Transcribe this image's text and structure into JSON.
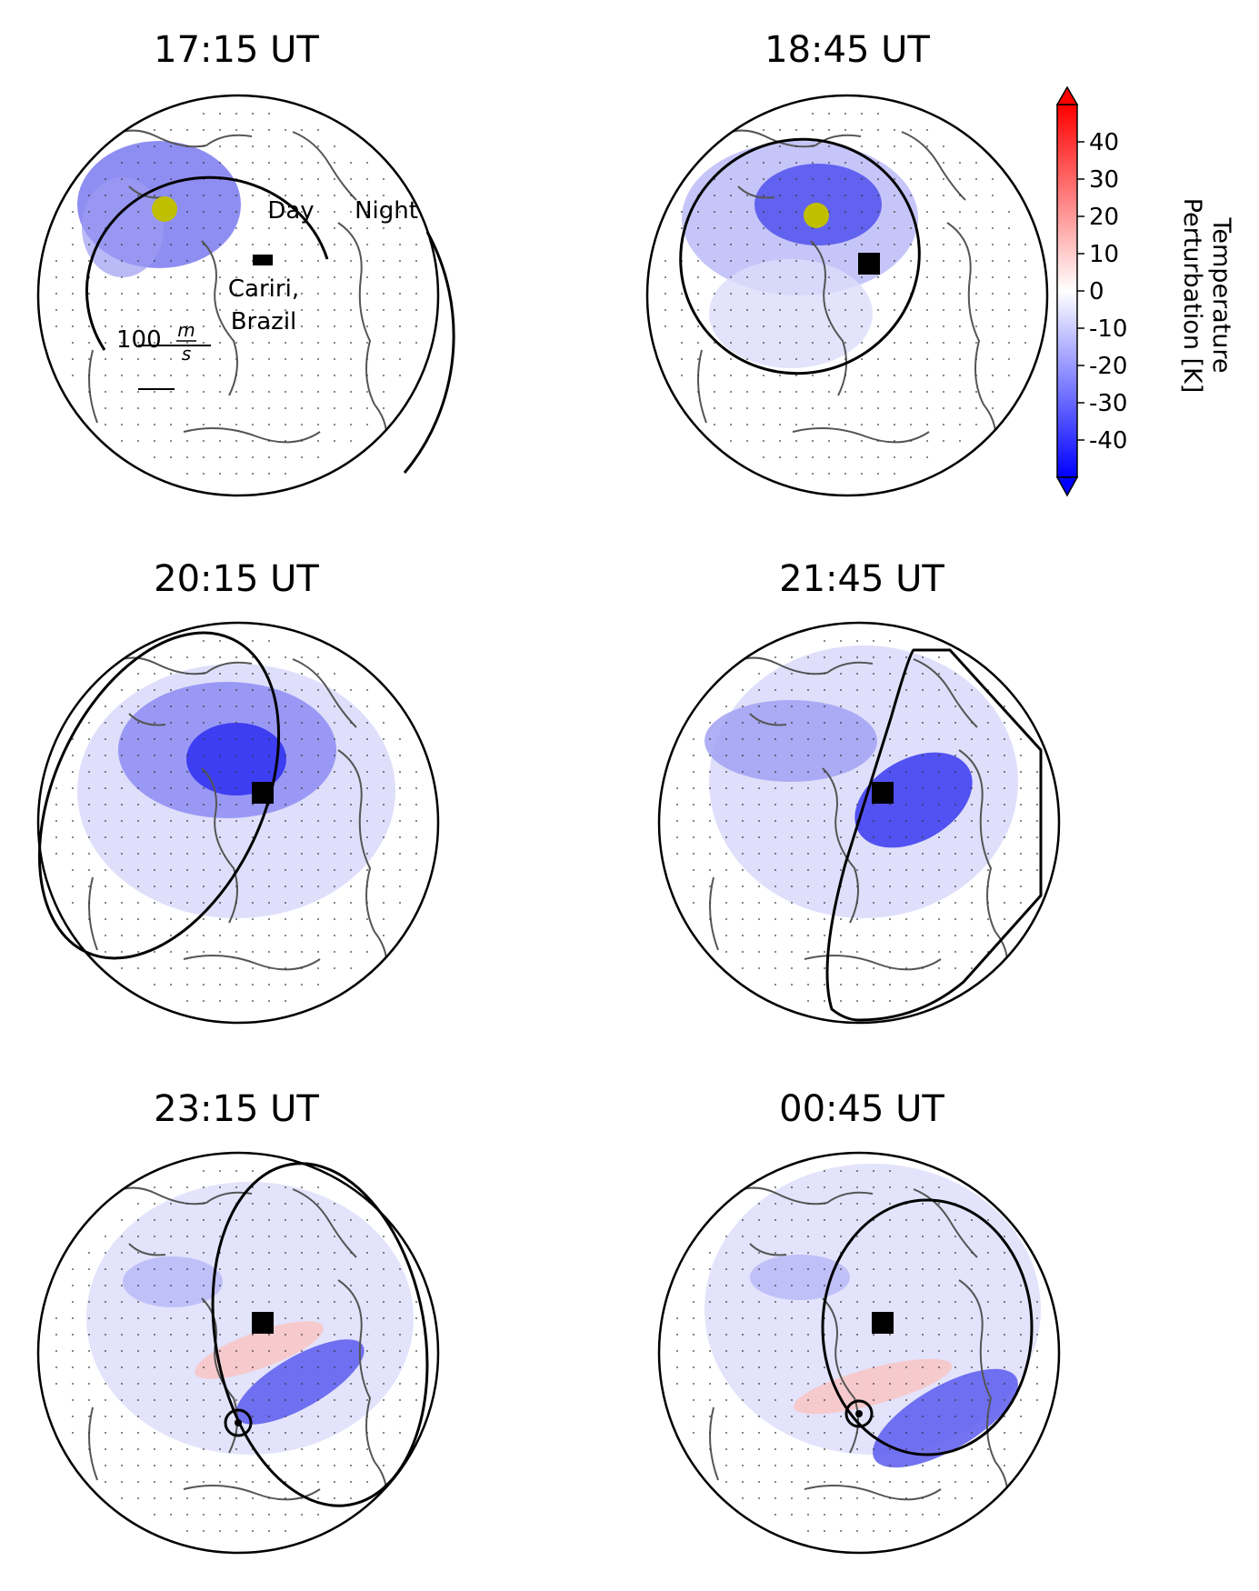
{
  "chart_data": {
    "type": "heatmap",
    "projection": "orthographic globe maps",
    "panels": [
      {
        "title": "17:15 UT",
        "annotations": [
          "Day",
          "Night",
          "Cariri,",
          "Brazil"
        ],
        "scale_label": "100",
        "scale_unit": {
          "numerator": "m",
          "denominator": "s"
        },
        "sun_marker": true
      },
      {
        "title": "18:45 UT",
        "sun_marker": true
      },
      {
        "title": "20:15 UT"
      },
      {
        "title": "21:45 UT"
      },
      {
        "title": "23:15 UT"
      },
      {
        "title": "00:45 UT"
      }
    ],
    "colorbar": {
      "label_lines": [
        "Temperature",
        "Perturbation [K]"
      ],
      "ticks": [
        "40",
        "30",
        "20",
        "10",
        "0",
        "-10",
        "-20",
        "-30",
        "-40"
      ],
      "range": [
        -50,
        50
      ],
      "extend": "both",
      "colormap": "bwr",
      "colors": {
        "min": "#0000ff",
        "zero": "#ffffff",
        "max": "#ff0000"
      }
    },
    "station": "Cariri, Brazil"
  },
  "colors": {
    "land": "#555555",
    "terminator": "#000000",
    "sun": "#bfbf00",
    "station": "#000000"
  }
}
